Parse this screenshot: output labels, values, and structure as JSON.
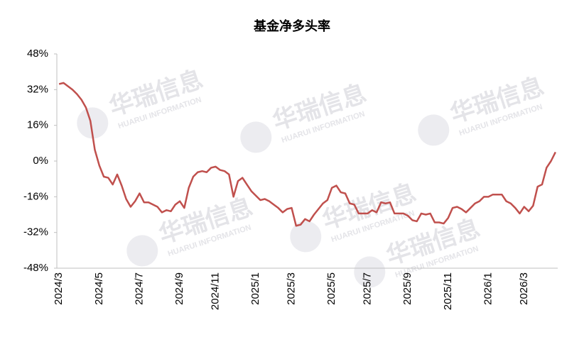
{
  "chart_data": {
    "type": "line",
    "title": "基金净多头率",
    "watermark": {
      "text": "华瑞信息",
      "subtext": "HUARUI INFORMATION"
    },
    "categories": [
      "2024/3",
      null,
      null,
      null,
      null,
      null,
      null,
      null,
      null,
      "2024/5",
      null,
      null,
      null,
      null,
      null,
      null,
      null,
      null,
      "2024/7",
      null,
      null,
      null,
      null,
      null,
      null,
      null,
      null,
      "2024/9",
      null,
      null,
      null,
      null,
      null,
      null,
      null,
      "2024/11",
      null,
      null,
      null,
      null,
      null,
      null,
      null,
      null,
      "2025/1",
      null,
      null,
      null,
      null,
      null,
      null,
      null,
      "2025/3",
      null,
      null,
      null,
      null,
      null,
      null,
      null,
      null,
      "2025/5",
      null,
      null,
      null,
      null,
      null,
      null,
      null,
      "2025/7",
      null,
      null,
      null,
      null,
      null,
      null,
      null,
      null,
      "2025/9",
      null,
      null,
      null,
      null,
      null,
      null,
      null,
      null,
      "2025/11",
      null,
      null,
      null,
      null,
      null,
      null,
      null,
      null,
      "2026/1",
      null,
      null,
      null,
      null,
      null,
      null,
      null,
      "2026/3",
      null,
      null,
      null,
      null,
      null,
      null,
      null
    ],
    "series": [
      {
        "name": "基金净多头率",
        "color": "#c0504d",
        "values": [
          34.5,
          35,
          33.5,
          32,
          30,
          27.5,
          24,
          18,
          5,
          -2,
          -7,
          -7.5,
          -10.5,
          -6,
          -11,
          -17,
          -20.5,
          -18,
          -14.5,
          -18.5,
          -18.5,
          -19.5,
          -20.5,
          -23,
          -22,
          -22.5,
          -19.5,
          -18,
          -21,
          -12,
          -7,
          -5,
          -4.5,
          -5,
          -3,
          -2.5,
          -4,
          -4.5,
          -6,
          -16,
          -9,
          -7.5,
          -10.5,
          -13.5,
          -15.5,
          -17.5,
          -17,
          -18,
          -19.5,
          -21,
          -23,
          -21.5,
          -21,
          -29,
          -28.5,
          -26,
          -27,
          -24,
          -21.5,
          -19,
          -17.5,
          -12,
          -11,
          -14,
          -14.5,
          -19,
          -19.5,
          -23.5,
          -23.5,
          -23.5,
          -22,
          -23,
          -18.5,
          -19,
          -18.5,
          -23.5,
          -23.5,
          -23.5,
          -24.5,
          -26.5,
          -27,
          -23.5,
          -24,
          -23.5,
          -27.5,
          -27.5,
          -28,
          -25.5,
          -21,
          -20.5,
          -21.5,
          -23,
          -21,
          -19,
          -18,
          -16,
          -16,
          -15,
          -15,
          -15,
          -18,
          -19,
          -21,
          -23.5,
          -20.5,
          -22.5,
          -20,
          -11.5,
          -10.5,
          -3,
          0,
          4
        ]
      }
    ],
    "ylim": [
      -48,
      48
    ],
    "yticks": [
      {
        "value": 48,
        "label": "48%"
      },
      {
        "value": 32,
        "label": "32%"
      },
      {
        "value": 16,
        "label": "16%"
      },
      {
        "value": 0,
        "label": "0%"
      },
      {
        "value": -16,
        "label": "-16%"
      },
      {
        "value": -32,
        "label": "-32%"
      },
      {
        "value": -48,
        "label": "-48%"
      }
    ],
    "grid": false
  }
}
